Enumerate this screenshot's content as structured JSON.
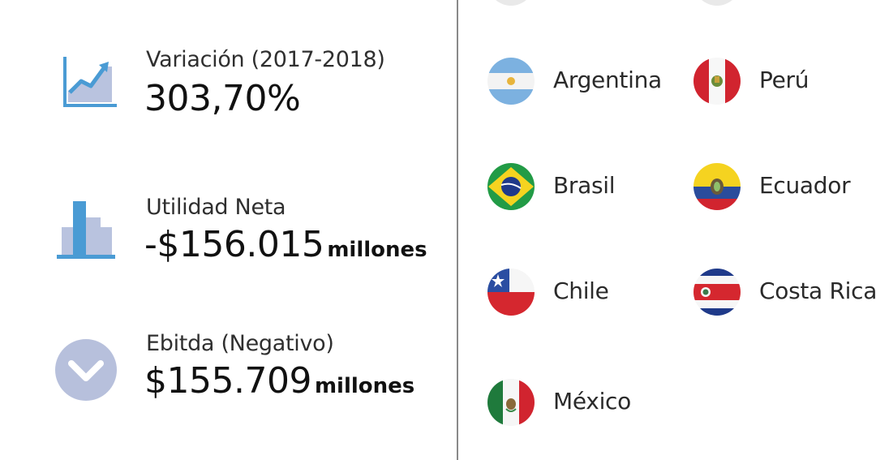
{
  "stats": [
    {
      "label": "Variación (2017-2018)",
      "value": "303,70%",
      "unit": "",
      "icon": "rising-chart-icon"
    },
    {
      "label": "Utilidad Neta",
      "value": "-$156.015",
      "unit": "millones",
      "icon": "bar-chart-icon"
    },
    {
      "label": "Ebitda (Negativo)",
      "value": "$155.709",
      "unit": "millones",
      "icon": "down-arrow-circle-icon"
    }
  ],
  "countries": [
    {
      "name": "Argentina",
      "flag": "argentina-flag-icon"
    },
    {
      "name": "Perú",
      "flag": "peru-flag-icon"
    },
    {
      "name": "Brasil",
      "flag": "brazil-flag-icon"
    },
    {
      "name": "Ecuador",
      "flag": "ecuador-flag-icon"
    },
    {
      "name": "Chile",
      "flag": "chile-flag-icon"
    },
    {
      "name": "Costa Rica",
      "flag": "costa-rica-flag-icon"
    },
    {
      "name": "México",
      "flag": "mexico-flag-icon"
    }
  ],
  "colors": {
    "icon_blue": "#4a9bd4",
    "icon_light": "#b9c3df",
    "icon_circle": "#b7c0dc",
    "divider": "#8a8a8a"
  }
}
